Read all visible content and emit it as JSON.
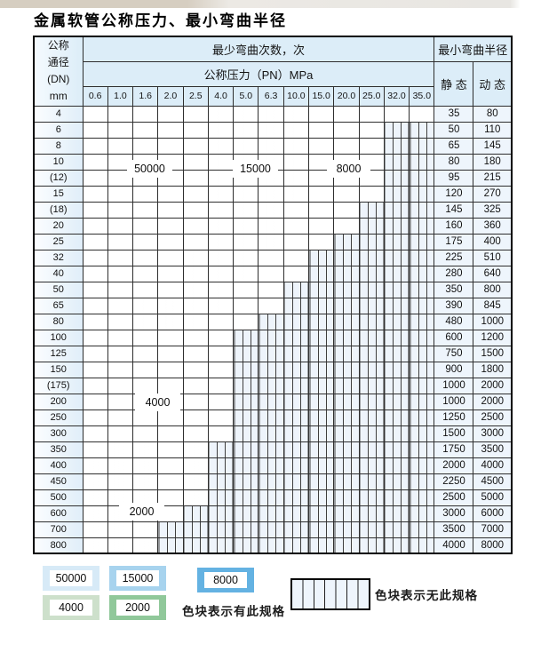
{
  "title": "金属软管公称压力、最小弯曲半径",
  "zone_colors": {
    "50000": "#d7eaf7",
    "15000": "#a7d3ee",
    "8000": "#64b2e2",
    "4000": "#cde0cb",
    "2000": "#90c89a"
  },
  "table": {
    "dn_header_lines": [
      "公称",
      "通径",
      "(DN)",
      "mm"
    ],
    "cycles_header": "最少弯曲次数，次",
    "pressure_header": "公称压力（PN）MPa",
    "pressure_columns": [
      "0.6",
      "1.0",
      "1.6",
      "2.0",
      "2.5",
      "4.0",
      "5.0",
      "6.3",
      "10.0",
      "15.0",
      "20.0",
      "25.0",
      "32.0",
      "35.0"
    ],
    "radius_header": "最小弯曲半径",
    "static_header": "静 态",
    "dynamic_header": "动 态",
    "rows": [
      {
        "dn": "4",
        "static": "35",
        "dynamic": "80",
        "cells": [
          "50000",
          "50000",
          "50000",
          "50000",
          "50000",
          "15000",
          "15000",
          "15000",
          "15000",
          "8000",
          "8000",
          "8000",
          "8000",
          "8000"
        ]
      },
      {
        "dn": "6",
        "static": "50",
        "dynamic": "110",
        "cells": [
          "50000",
          "50000",
          "50000",
          "50000",
          "50000",
          "15000",
          "15000",
          "15000",
          "15000",
          "8000",
          "8000",
          "8000",
          "x",
          "x"
        ]
      },
      {
        "dn": "8",
        "static": "65",
        "dynamic": "145",
        "cells": [
          "50000",
          "50000",
          "50000",
          "50000",
          "50000",
          "15000",
          "15000",
          "15000",
          "15000",
          "8000",
          "8000",
          "8000",
          "x",
          "x"
        ]
      },
      {
        "dn": "10",
        "static": "80",
        "dynamic": "180",
        "cells": [
          "50000",
          "50000",
          "50000",
          "50000",
          "50000",
          "15000",
          "15000",
          "15000",
          "15000",
          "8000",
          "8000",
          "8000",
          "x",
          "x"
        ]
      },
      {
        "dn": "(12)",
        "static": "95",
        "dynamic": "215",
        "cells": [
          "50000",
          "50000",
          "50000",
          "50000",
          "50000",
          "15000",
          "15000",
          "15000",
          "15000",
          "8000",
          "8000",
          "8000",
          "x",
          "x"
        ]
      },
      {
        "dn": "15",
        "static": "120",
        "dynamic": "270",
        "cells": [
          "50000",
          "50000",
          "50000",
          "50000",
          "50000",
          "15000",
          "15000",
          "15000",
          "15000",
          "8000",
          "8000",
          "8000",
          "x",
          "x"
        ]
      },
      {
        "dn": "(18)",
        "static": "145",
        "dynamic": "325",
        "cells": [
          "50000",
          "50000",
          "50000",
          "50000",
          "50000",
          "15000",
          "15000",
          "15000",
          "8000",
          "8000",
          "8000",
          "x",
          "x",
          "x"
        ]
      },
      {
        "dn": "20",
        "static": "160",
        "dynamic": "360",
        "cells": [
          "50000",
          "50000",
          "50000",
          "50000",
          "50000",
          "15000",
          "15000",
          "15000",
          "8000",
          "8000",
          "8000",
          "x",
          "x",
          "x"
        ]
      },
      {
        "dn": "25",
        "static": "175",
        "dynamic": "400",
        "cells": [
          "50000",
          "50000",
          "50000",
          "50000",
          "50000",
          "15000",
          "15000",
          "15000",
          "8000",
          "8000",
          "x",
          "x",
          "x",
          "x"
        ]
      },
      {
        "dn": "32",
        "static": "225",
        "dynamic": "510",
        "cells": [
          "50000",
          "50000",
          "50000",
          "50000",
          "15000",
          "15000",
          "15000",
          "8000",
          "8000",
          "x",
          "x",
          "x",
          "x",
          "x"
        ]
      },
      {
        "dn": "40",
        "static": "280",
        "dynamic": "640",
        "cells": [
          "50000",
          "50000",
          "50000",
          "50000",
          "15000",
          "15000",
          "15000",
          "8000",
          "8000",
          "x",
          "x",
          "x",
          "x",
          "x"
        ]
      },
      {
        "dn": "50",
        "static": "350",
        "dynamic": "800",
        "cells": [
          "50000",
          "50000",
          "50000",
          "50000",
          "15000",
          "15000",
          "8000",
          "8000",
          "x",
          "x",
          "x",
          "x",
          "x",
          "x"
        ]
      },
      {
        "dn": "65",
        "static": "390",
        "dynamic": "845",
        "cells": [
          "50000",
          "50000",
          "15000",
          "15000",
          "15000",
          "15000",
          "8000",
          "8000",
          "x",
          "x",
          "x",
          "x",
          "x",
          "x"
        ]
      },
      {
        "dn": "80",
        "static": "480",
        "dynamic": "1000",
        "cells": [
          "50000",
          "50000",
          "15000",
          "15000",
          "15000",
          "8000",
          "8000",
          "x",
          "x",
          "x",
          "x",
          "x",
          "x",
          "x"
        ]
      },
      {
        "dn": "100",
        "static": "600",
        "dynamic": "1200",
        "cells": [
          "4000",
          "4000",
          "4000",
          "4000",
          "4000",
          "4000",
          "x",
          "x",
          "x",
          "x",
          "x",
          "x",
          "x",
          "x"
        ]
      },
      {
        "dn": "125",
        "static": "750",
        "dynamic": "1500",
        "cells": [
          "4000",
          "4000",
          "4000",
          "4000",
          "4000",
          "4000",
          "x",
          "x",
          "x",
          "x",
          "x",
          "x",
          "x",
          "x"
        ]
      },
      {
        "dn": "150",
        "static": "900",
        "dynamic": "1800",
        "cells": [
          "4000",
          "4000",
          "4000",
          "4000",
          "4000",
          "4000",
          "x",
          "x",
          "x",
          "x",
          "x",
          "x",
          "x",
          "x"
        ]
      },
      {
        "dn": "(175)",
        "static": "1000",
        "dynamic": "2000",
        "cells": [
          "4000",
          "4000",
          "4000",
          "4000",
          "4000",
          "4000",
          "x",
          "x",
          "x",
          "x",
          "x",
          "x",
          "x",
          "x"
        ]
      },
      {
        "dn": "200",
        "static": "1000",
        "dynamic": "2000",
        "cells": [
          "4000",
          "4000",
          "4000",
          "4000",
          "4000",
          "4000",
          "x",
          "x",
          "x",
          "x",
          "x",
          "x",
          "x",
          "x"
        ]
      },
      {
        "dn": "250",
        "static": "1250",
        "dynamic": "2500",
        "cells": [
          "4000",
          "4000",
          "4000",
          "4000",
          "4000",
          "4000",
          "x",
          "x",
          "x",
          "x",
          "x",
          "x",
          "x",
          "x"
        ]
      },
      {
        "dn": "300",
        "static": "1500",
        "dynamic": "3000",
        "cells": [
          "4000",
          "4000",
          "4000",
          "4000",
          "4000",
          "4000",
          "x",
          "x",
          "x",
          "x",
          "x",
          "x",
          "x",
          "x"
        ]
      },
      {
        "dn": "350",
        "static": "1750",
        "dynamic": "3500",
        "cells": [
          "2000",
          "2000",
          "2000",
          "2000",
          "2000",
          "x",
          "x",
          "x",
          "x",
          "x",
          "x",
          "x",
          "x",
          "x"
        ]
      },
      {
        "dn": "400",
        "static": "2000",
        "dynamic": "4000",
        "cells": [
          "2000",
          "2000",
          "2000",
          "2000",
          "2000",
          "x",
          "x",
          "x",
          "x",
          "x",
          "x",
          "x",
          "x",
          "x"
        ]
      },
      {
        "dn": "450",
        "static": "2250",
        "dynamic": "4500",
        "cells": [
          "2000",
          "2000",
          "2000",
          "2000",
          "2000",
          "x",
          "x",
          "x",
          "x",
          "x",
          "x",
          "x",
          "x",
          "x"
        ]
      },
      {
        "dn": "500",
        "static": "2500",
        "dynamic": "5000",
        "cells": [
          "2000",
          "2000",
          "2000",
          "2000",
          "2000",
          "x",
          "x",
          "x",
          "x",
          "x",
          "x",
          "x",
          "x",
          "x"
        ]
      },
      {
        "dn": "600",
        "static": "3000",
        "dynamic": "6000",
        "cells": [
          "2000",
          "2000",
          "2000",
          "2000",
          "x",
          "x",
          "x",
          "x",
          "x",
          "x",
          "x",
          "x",
          "x",
          "x"
        ]
      },
      {
        "dn": "700",
        "static": "3500",
        "dynamic": "7000",
        "cells": [
          "2000",
          "2000",
          "2000",
          "x",
          "x",
          "x",
          "x",
          "x",
          "x",
          "x",
          "x",
          "x",
          "x",
          "x"
        ]
      },
      {
        "dn": "800",
        "static": "4000",
        "dynamic": "8000",
        "cells": [
          "2000",
          "2000",
          "2000",
          "x",
          "x",
          "x",
          "x",
          "x",
          "x",
          "x",
          "x",
          "x",
          "x",
          "x"
        ]
      }
    ]
  },
  "overlays": [
    {
      "text": "50000"
    },
    {
      "text": "15000"
    },
    {
      "text": "8000"
    },
    {
      "text": "4000"
    },
    {
      "text": "2000"
    }
  ],
  "legend": {
    "chips": [
      {
        "label": "50000",
        "color": "#d7eaf7"
      },
      {
        "label": "15000",
        "color": "#a7d3ee"
      },
      {
        "label": "8000",
        "color": "#64b2e2"
      },
      {
        "label": "4000",
        "color": "#cde0cb"
      },
      {
        "label": "2000",
        "color": "#90c89a"
      }
    ],
    "has_spec_text": "色块表示有此规格",
    "no_spec_text": "色块表示无此规格"
  }
}
